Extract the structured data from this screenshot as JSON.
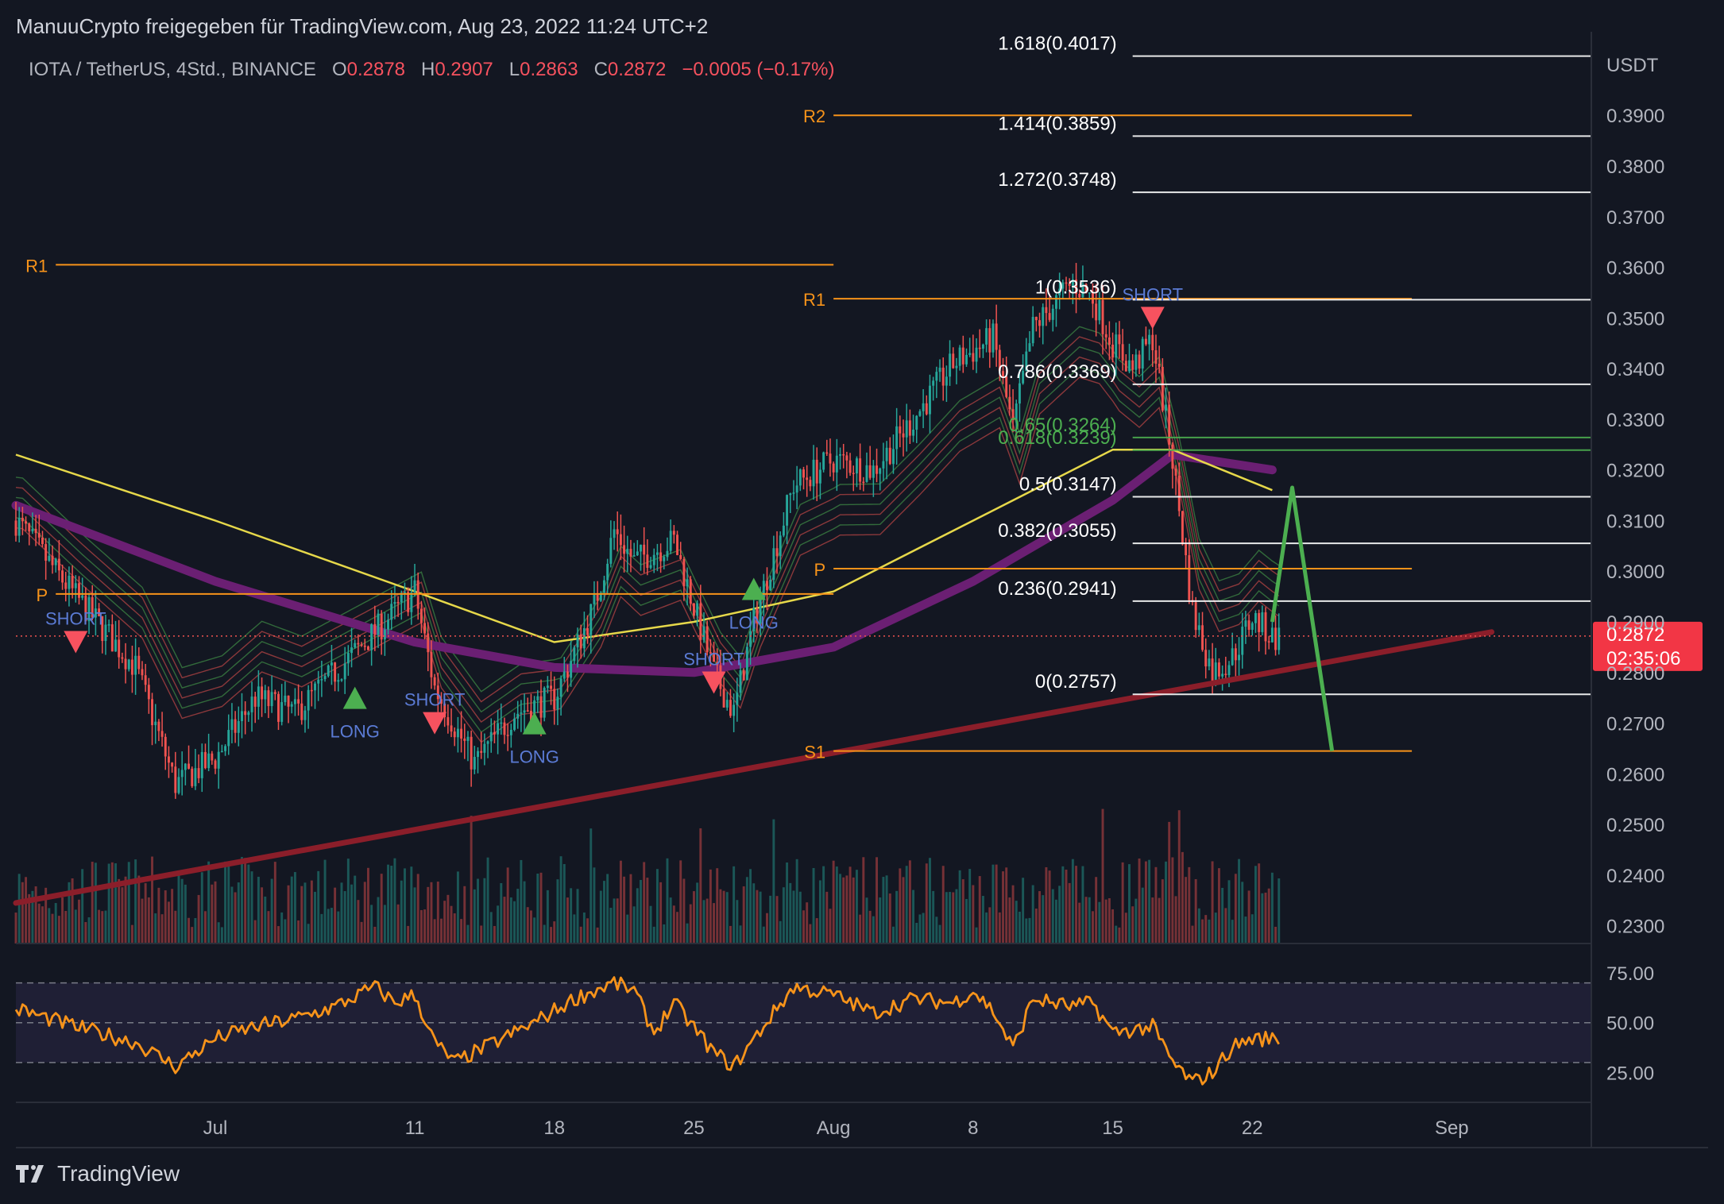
{
  "header": {
    "title": "ManuuCrypto freigegeben für TradingView.com, Aug 23, 2022 11:24 UTC+2"
  },
  "legend": {
    "symbol": "IOTA / TetherUS, 4Std., BINANCE",
    "o_label": "O",
    "o": "0.2878",
    "h_label": "H",
    "h": "0.2907",
    "l_label": "L",
    "l": "0.2863",
    "c_label": "C",
    "c": "0.2872",
    "change": "−0.0005 (−0.17%)"
  },
  "footer": {
    "brand": "TradingView"
  },
  "colors": {
    "bg": "#131722",
    "up": "#26a69a",
    "down": "#ef5350",
    "pivot": "#f7931a",
    "fib": "#ffffff",
    "fib_green": "#4caf50",
    "ema_yellow": "#e6d84a",
    "ema_purple": "#6b1f73",
    "trend": "#8b1e2a",
    "rsi": "#f7931a",
    "forecast": "#4caf50"
  },
  "chart_data": [
    {
      "type": "candlestick",
      "title": "",
      "ylabel": "USDT",
      "ylim": [
        0.2265,
        0.4065
      ],
      "y_ticks": [
        "0.3900",
        "0.3800",
        "0.3700",
        "0.3600",
        "0.3500",
        "0.3400",
        "0.3300",
        "0.3200",
        "0.3100",
        "0.3000",
        "0.2900",
        "0.2800",
        "0.2700",
        "0.2600",
        "0.2500",
        "0.2400",
        "0.2300"
      ],
      "x_tick_labels": [
        "Jul",
        "11",
        "18",
        "25",
        "Aug",
        "8",
        "15",
        "22",
        "Sep"
      ],
      "date_range": [
        "2022-06-21",
        "2022-09-08"
      ],
      "last_price": "0.2872",
      "countdown": "02:35:06",
      "close_path": [
        [
          "2022-06-21",
          0.31
        ],
        [
          "2022-06-24",
          0.295
        ],
        [
          "2022-06-27",
          0.281
        ],
        [
          "2022-06-29",
          0.258
        ],
        [
          "2022-07-01",
          0.263
        ],
        [
          "2022-07-03",
          0.275
        ],
        [
          "2022-07-05",
          0.272
        ],
        [
          "2022-07-07",
          0.28
        ],
        [
          "2022-07-09",
          0.288
        ],
        [
          "2022-07-11",
          0.296
        ],
        [
          "2022-07-12",
          0.277
        ],
        [
          "2022-07-14",
          0.262
        ],
        [
          "2022-07-16",
          0.272
        ],
        [
          "2022-07-18",
          0.275
        ],
        [
          "2022-07-20",
          0.293
        ],
        [
          "2022-07-21",
          0.308
        ],
        [
          "2022-07-22",
          0.302
        ],
        [
          "2022-07-24",
          0.306
        ],
        [
          "2022-07-26",
          0.28
        ],
        [
          "2022-07-27",
          0.272
        ],
        [
          "2022-07-28",
          0.29
        ],
        [
          "2022-07-30",
          0.317
        ],
        [
          "2022-08-01",
          0.322
        ],
        [
          "2022-08-03",
          0.32
        ],
        [
          "2022-08-05",
          0.33
        ],
        [
          "2022-08-07",
          0.341
        ],
        [
          "2022-08-09",
          0.346
        ],
        [
          "2022-08-10",
          0.328
        ],
        [
          "2022-08-11",
          0.348
        ],
        [
          "2022-08-13",
          0.357
        ],
        [
          "2022-08-14",
          0.354
        ],
        [
          "2022-08-15",
          0.345
        ],
        [
          "2022-08-16",
          0.34
        ],
        [
          "2022-08-17",
          0.346
        ],
        [
          "2022-08-18",
          0.322
        ],
        [
          "2022-08-19",
          0.292
        ],
        [
          "2022-08-20",
          0.28
        ],
        [
          "2022-08-21",
          0.283
        ],
        [
          "2022-08-22",
          0.291
        ],
        [
          "2022-08-23",
          0.287
        ]
      ],
      "ema_yellow_path": [
        [
          "2022-06-21",
          0.323
        ],
        [
          "2022-07-01",
          0.31
        ],
        [
          "2022-07-11",
          0.296
        ],
        [
          "2022-07-18",
          0.286
        ],
        [
          "2022-07-25",
          0.29
        ],
        [
          "2022-08-01",
          0.296
        ],
        [
          "2022-08-08",
          0.31
        ],
        [
          "2022-08-15",
          0.324
        ],
        [
          "2022-08-18",
          0.324
        ],
        [
          "2022-08-23",
          0.316
        ]
      ],
      "ema_purple_path": [
        [
          "2022-06-21",
          0.313
        ],
        [
          "2022-07-01",
          0.298
        ],
        [
          "2022-07-11",
          0.286
        ],
        [
          "2022-07-18",
          0.281
        ],
        [
          "2022-07-25",
          0.28
        ],
        [
          "2022-08-01",
          0.285
        ],
        [
          "2022-08-08",
          0.298
        ],
        [
          "2022-08-15",
          0.314
        ],
        [
          "2022-08-18",
          0.323
        ],
        [
          "2022-08-23",
          0.32
        ]
      ],
      "trendline": [
        [
          "2022-06-21",
          0.2345
        ],
        [
          "2022-09-03",
          0.288
        ]
      ],
      "forecast_path": [
        [
          "2022-08-23",
          0.29
        ],
        [
          "2022-08-24",
          0.3165
        ],
        [
          "2022-08-26",
          0.2645
        ]
      ],
      "pivot_levels": [
        {
          "label": "R1",
          "value": 0.3605,
          "from": "2022-06-23",
          "to": "2022-08-01"
        },
        {
          "label": "P",
          "value": 0.2955,
          "from": "2022-06-23",
          "to": "2022-08-01"
        },
        {
          "label": "R2",
          "value": 0.39,
          "from": "2022-08-01",
          "to": "2022-08-30"
        },
        {
          "label": "R1",
          "value": 0.3538,
          "from": "2022-08-01",
          "to": "2022-08-30"
        },
        {
          "label": "P",
          "value": 0.3005,
          "from": "2022-08-01",
          "to": "2022-08-30"
        },
        {
          "label": "S1",
          "value": 0.2645,
          "from": "2022-08-01",
          "to": "2022-08-30"
        }
      ],
      "fib_levels": [
        {
          "label": "1.618(0.4017)",
          "value": 0.4017,
          "color": "white"
        },
        {
          "label": "1.414(0.3859)",
          "value": 0.3859,
          "color": "white"
        },
        {
          "label": "1.272(0.3748)",
          "value": 0.3748,
          "color": "white"
        },
        {
          "label": "1(0.3536)",
          "value": 0.3536,
          "color": "white"
        },
        {
          "label": "0.786(0.3369)",
          "value": 0.3369,
          "color": "white"
        },
        {
          "label": "0.65(0.3264)",
          "value": 0.3264,
          "color": "green"
        },
        {
          "label": "0.618(0.3239)",
          "value": 0.3239,
          "color": "green"
        },
        {
          "label": "0.5(0.3147)",
          "value": 0.3147,
          "color": "white"
        },
        {
          "label": "0.382(0.3055)",
          "value": 0.3055,
          "color": "white"
        },
        {
          "label": "0.236(0.2941)",
          "value": 0.2941,
          "color": "white"
        },
        {
          "label": "0(0.2757)",
          "value": 0.2757,
          "color": "white"
        }
      ],
      "signals": [
        {
          "type": "SHORT",
          "date": "2022-06-24",
          "price": 0.286
        },
        {
          "type": "LONG",
          "date": "2022-07-08",
          "price": 0.275
        },
        {
          "type": "SHORT",
          "date": "2022-07-12",
          "price": 0.27
        },
        {
          "type": "LONG",
          "date": "2022-07-17",
          "price": 0.27
        },
        {
          "type": "SHORT",
          "date": "2022-07-26",
          "price": 0.278
        },
        {
          "type": "LONG",
          "date": "2022-07-28",
          "price": 0.2965
        },
        {
          "type": "SHORT",
          "date": "2022-08-17",
          "price": 0.35
        }
      ]
    },
    {
      "type": "line",
      "title": "",
      "ylim": [
        10,
        85
      ],
      "y_ticks": [
        "75.00",
        "50.00",
        "25.00"
      ],
      "bands": [
        30,
        50,
        70
      ],
      "series": [
        {
          "values_by_date": [
            [
              "2022-06-21",
              57
            ],
            [
              "2022-06-24",
              48
            ],
            [
              "2022-06-27",
              40
            ],
            [
              "2022-06-29",
              28
            ],
            [
              "2022-07-01",
              42
            ],
            [
              "2022-07-03",
              48
            ],
            [
              "2022-07-05",
              52
            ],
            [
              "2022-07-07",
              58
            ],
            [
              "2022-07-09",
              68
            ],
            [
              "2022-07-10",
              60
            ],
            [
              "2022-07-11",
              64
            ],
            [
              "2022-07-12",
              40
            ],
            [
              "2022-07-13",
              30
            ],
            [
              "2022-07-15",
              40
            ],
            [
              "2022-07-17",
              50
            ],
            [
              "2022-07-19",
              62
            ],
            [
              "2022-07-21",
              70
            ],
            [
              "2022-07-22",
              66
            ],
            [
              "2022-07-23",
              45
            ],
            [
              "2022-07-24",
              60
            ],
            [
              "2022-07-26",
              35
            ],
            [
              "2022-07-27",
              28
            ],
            [
              "2022-07-29",
              55
            ],
            [
              "2022-07-30",
              68
            ],
            [
              "2022-08-01",
              64
            ],
            [
              "2022-08-03",
              55
            ],
            [
              "2022-08-05",
              62
            ],
            [
              "2022-08-07",
              60
            ],
            [
              "2022-08-08",
              66
            ],
            [
              "2022-08-09",
              56
            ],
            [
              "2022-08-10",
              37
            ],
            [
              "2022-08-11",
              62
            ],
            [
              "2022-08-13",
              58
            ],
            [
              "2022-08-14",
              60
            ],
            [
              "2022-08-15",
              45
            ],
            [
              "2022-08-17",
              48
            ],
            [
              "2022-08-18",
              30
            ],
            [
              "2022-08-19",
              20
            ],
            [
              "2022-08-20",
              25
            ],
            [
              "2022-08-21",
              38
            ],
            [
              "2022-08-22",
              42
            ],
            [
              "2022-08-23",
              42
            ]
          ]
        }
      ]
    }
  ]
}
